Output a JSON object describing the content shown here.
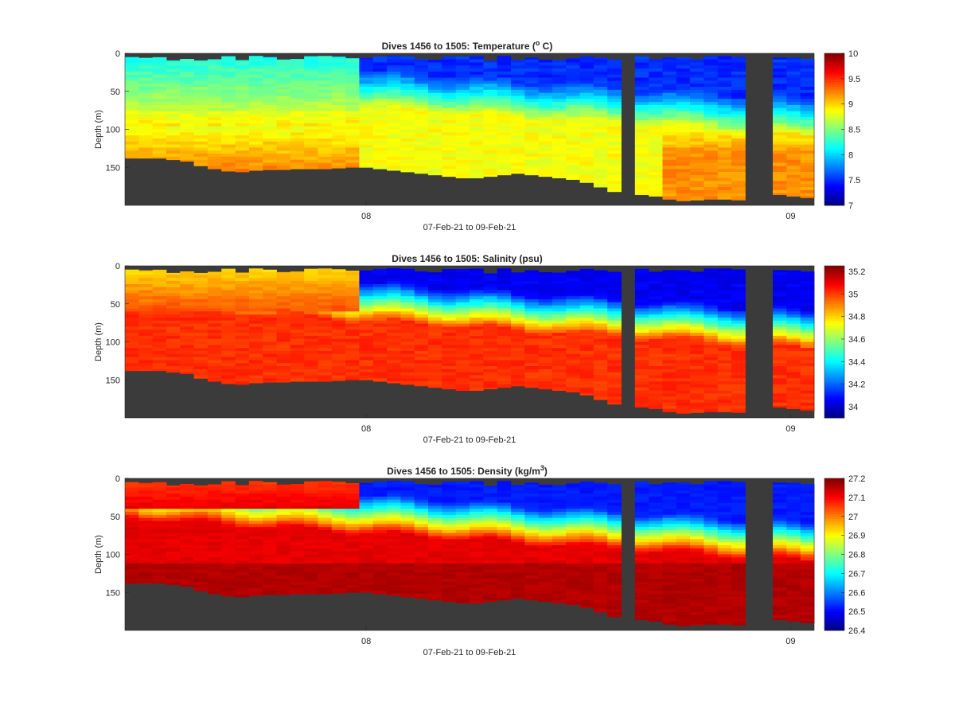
{
  "chart_data": [
    {
      "type": "heatmap",
      "title_parts": [
        "Dives 1456 to 1505: Temperature (",
        "o",
        " C)"
      ],
      "variable": "temperature",
      "ylabel": "Depth (m)",
      "xlabel": "07-Feb-21 to 09-Feb-21",
      "x_ticks": [
        "08",
        "09"
      ],
      "y_ticks": [
        "0",
        "50",
        "100",
        "150"
      ],
      "ylim": [
        0,
        200
      ],
      "colorbar": {
        "min": 7,
        "max": 10,
        "ticks": [
          "7",
          "7.5",
          "8",
          "8.5",
          "9",
          "9.5",
          "10"
        ]
      },
      "colormap": "jet",
      "missing_color": "#3b3b3b"
    },
    {
      "type": "heatmap",
      "title_parts": [
        "Dives 1456 to 1505: Salinity (psu)"
      ],
      "variable": "salinity",
      "ylabel": "Depth (m)",
      "xlabel": "07-Feb-21 to 09-Feb-21",
      "x_ticks": [
        "08",
        "09"
      ],
      "y_ticks": [
        "0",
        "50",
        "100",
        "150"
      ],
      "ylim": [
        0,
        200
      ],
      "colorbar": {
        "min": 33.9,
        "max": 35.25,
        "ticks": [
          "34",
          "34.2",
          "34.4",
          "34.6",
          "34.8",
          "35",
          "35.2"
        ]
      },
      "colormap": "jet",
      "missing_color": "#3b3b3b"
    },
    {
      "type": "heatmap",
      "title_parts": [
        "Dives 1456 to 1505: Density (kg/m",
        "3",
        ")"
      ],
      "variable": "density",
      "ylabel": "Depth (m)",
      "xlabel": "07-Feb-21 to 09-Feb-21",
      "x_ticks": [
        "08",
        "09"
      ],
      "y_ticks": [
        "0",
        "50",
        "100",
        "150"
      ],
      "ylim": [
        0,
        200
      ],
      "colorbar": {
        "min": 26.4,
        "max": 27.2,
        "ticks": [
          "26.4",
          "26.5",
          "26.6",
          "26.7",
          "26.8",
          "26.9",
          "27",
          "27.1",
          "27.2"
        ]
      },
      "colormap": "jet",
      "missing_color": "#3b3b3b"
    }
  ],
  "dives": {
    "count": 50,
    "missing_intervals": [
      36,
      45,
      46
    ],
    "bottom_depth_m": [
      138,
      138,
      138,
      140,
      142,
      148,
      152,
      155,
      156,
      154,
      153,
      153,
      152,
      152,
      152,
      151,
      150,
      150,
      152,
      154,
      156,
      158,
      160,
      162,
      164,
      164,
      162,
      160,
      158,
      160,
      162,
      164,
      166,
      170,
      176,
      182,
      191,
      186,
      188,
      192,
      194,
      193,
      192,
      192,
      193,
      196,
      192,
      186,
      188,
      190
    ]
  },
  "day_ticks_dive_index": {
    "08": 17.5,
    "09": 48.3
  }
}
